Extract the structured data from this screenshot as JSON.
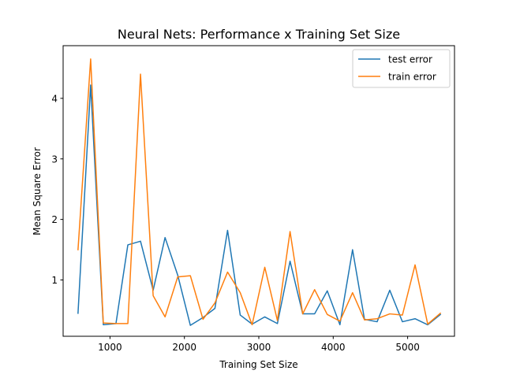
{
  "chart_data": {
    "type": "line",
    "title": "Neural Nets: Performance x Training Set Size",
    "xlabel": "Training Set Size",
    "ylabel": "Mean Square Error",
    "xlim": [
      370,
      5630
    ],
    "ylim": [
      0.07,
      4.87
    ],
    "xticks": [
      1000,
      2000,
      3000,
      4000,
      5000
    ],
    "yticks": [
      1,
      2,
      3,
      4
    ],
    "grid": false,
    "legend_position": "top-right",
    "x": [
      570,
      740,
      910,
      1080,
      1240,
      1410,
      1580,
      1740,
      1910,
      2080,
      2250,
      2410,
      2580,
      2750,
      2910,
      3080,
      3250,
      3420,
      3590,
      3750,
      3920,
      4090,
      4260,
      4420,
      4590,
      4760,
      4930,
      5100,
      5270,
      5440
    ],
    "series": [
      {
        "name": "test error",
        "color": "#1f77b4",
        "values": [
          0.45,
          4.22,
          0.26,
          0.28,
          1.58,
          1.64,
          0.83,
          1.7,
          1.08,
          0.25,
          0.38,
          0.53,
          1.82,
          0.42,
          0.27,
          0.39,
          0.28,
          1.31,
          0.44,
          0.44,
          0.82,
          0.26,
          1.5,
          0.35,
          0.31,
          0.83,
          0.31,
          0.36,
          0.26,
          0.43
        ]
      },
      {
        "name": "train error",
        "color": "#ff7f0e",
        "values": [
          1.5,
          4.65,
          0.29,
          0.28,
          0.28,
          4.4,
          0.74,
          0.39,
          1.05,
          1.07,
          0.35,
          0.62,
          1.13,
          0.79,
          0.26,
          1.21,
          0.33,
          1.8,
          0.44,
          0.84,
          0.43,
          0.32,
          0.79,
          0.34,
          0.36,
          0.44,
          0.42,
          1.25,
          0.27,
          0.45
        ]
      }
    ]
  }
}
